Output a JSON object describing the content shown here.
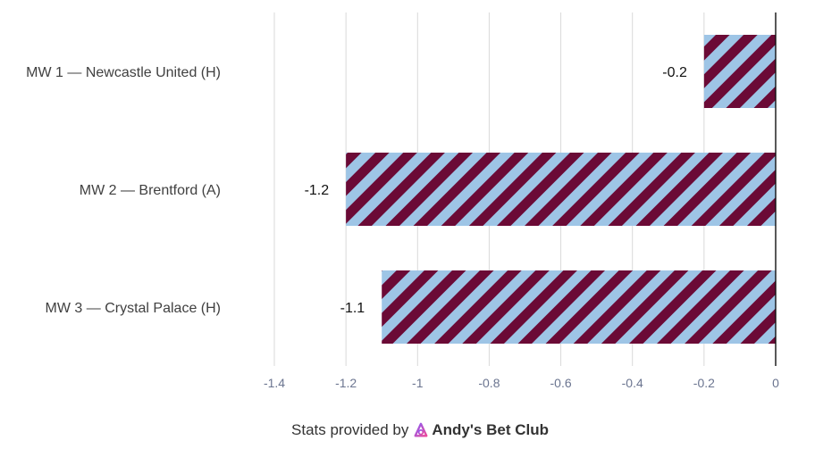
{
  "chart_data": {
    "type": "bar",
    "orientation": "horizontal",
    "categories": [
      "MW 1 — Newcastle United (H)",
      "MW 2 — Brentford (A)",
      "MW 3 — Crystal Palace (H)"
    ],
    "values": [
      -0.2,
      -1.2,
      -1.1
    ],
    "data_labels": [
      "-0.2",
      "-1.2",
      "-1.1"
    ],
    "x_ticks": [
      -1.4,
      -1.2,
      -1,
      -0.8,
      -0.6,
      -0.4,
      -0.2,
      0
    ],
    "x_tick_labels": [
      "-1.4",
      "-1.2",
      "-1",
      "-0.8",
      "-0.6",
      "-0.4",
      "-0.2",
      "0"
    ],
    "xlim": [
      -1.4,
      0
    ],
    "grid": true,
    "title": "",
    "xlabel": "",
    "ylabel": "",
    "bar_pattern": "diagonal-stripes",
    "colors": {
      "stripe_a": "#6b0a36",
      "stripe_b": "#9ec5e6",
      "grid": "#d9d9d9",
      "tick_text": "#6b7590",
      "category_text": "#404040"
    }
  },
  "footer": {
    "prefix": "Stats provided by",
    "brand": "Andy's Bet Club",
    "logo_icon": "andys-bet-club-logo-icon",
    "logo_colors": [
      "#8a5cf6",
      "#ec4899"
    ]
  }
}
